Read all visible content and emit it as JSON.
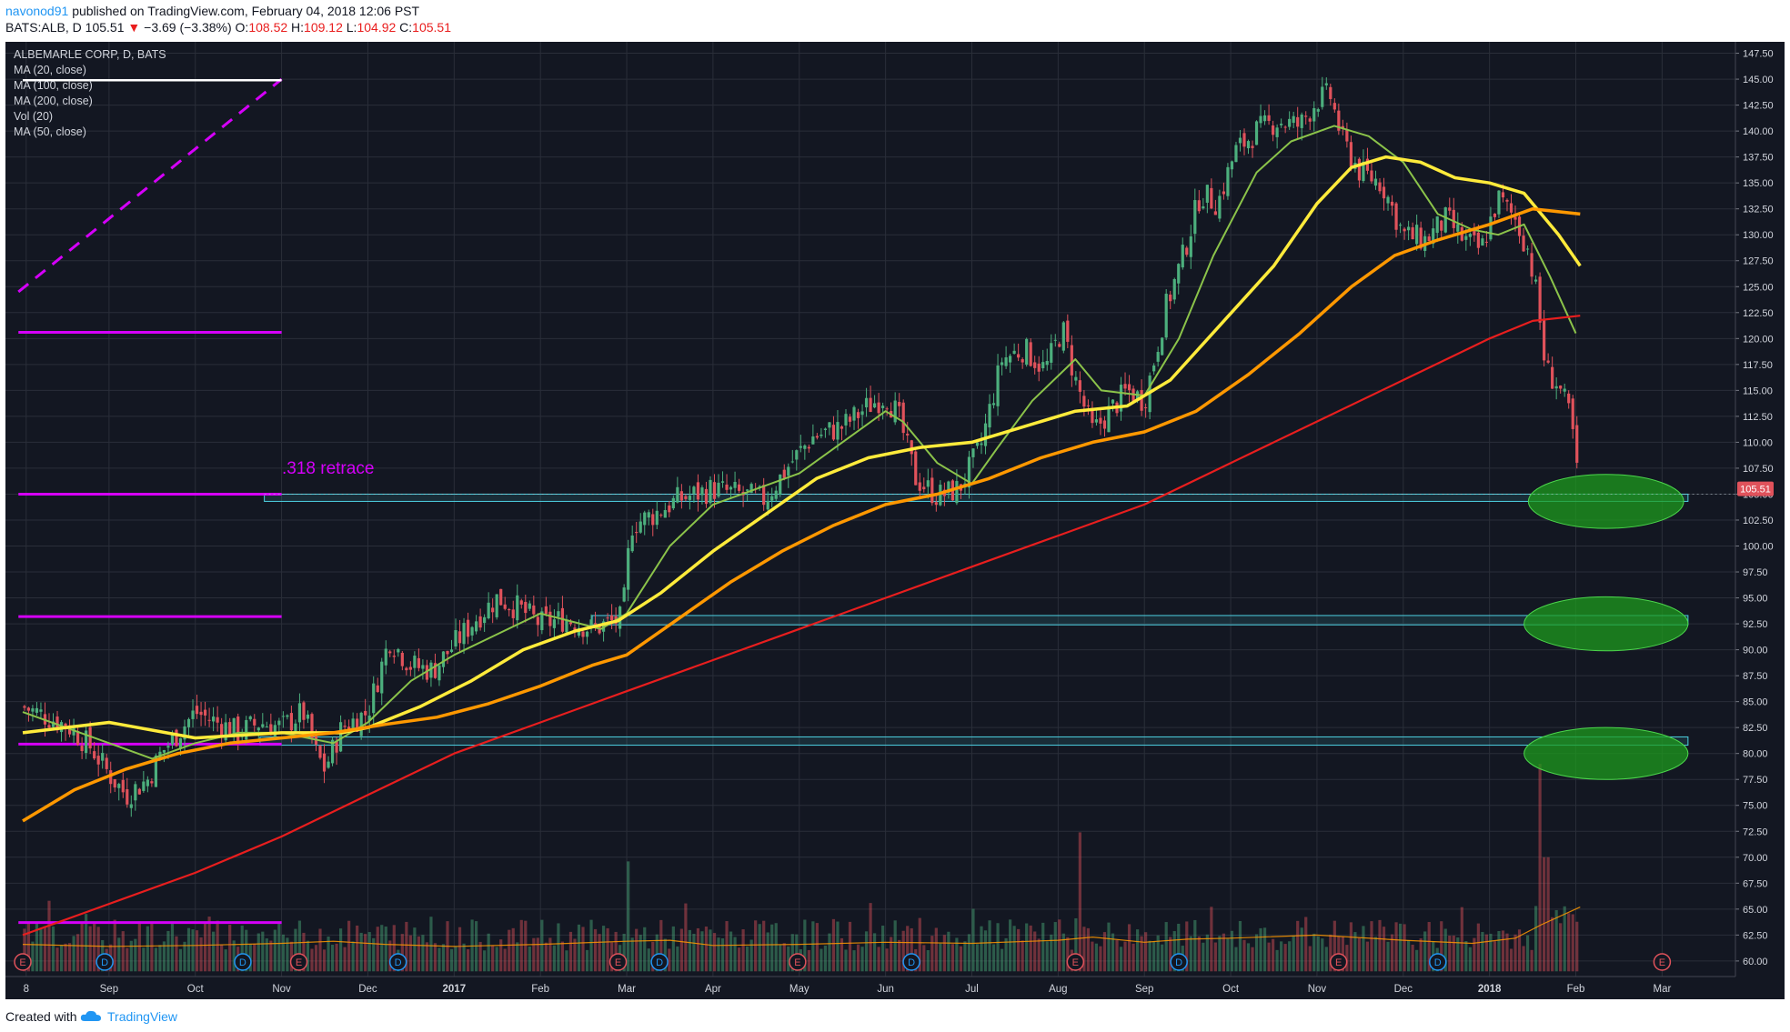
{
  "header": {
    "username": "navonod91",
    "published": "published on TradingView.com, February 04, 2018 12:06 PST",
    "symbol": "BATS:ALB, D",
    "last": "105.51",
    "change_arrow": "▼",
    "change": "−3.69 (−3.38%)",
    "open_label": "O:",
    "open": "108.52",
    "high_label": "H:",
    "high": "109.12",
    "low_label": "L:",
    "low": "104.92",
    "close_label": "C:",
    "close": "105.51"
  },
  "legend": {
    "title": "ALBEMARLE CORP, D, BATS",
    "items": [
      "MA (20, close)",
      "MA (100, close)",
      "MA (200, close)",
      "Vol (20)",
      "MA (50, close)"
    ]
  },
  "annotation": ".318 retrace",
  "price_label": "105.51",
  "footer": {
    "created_with": "Created with",
    "brand": "TradingView"
  },
  "colors": {
    "background": "#131722",
    "grid": "#2a2e39",
    "up": "#4caf7d",
    "down": "#e0525b",
    "ma20": "#8bc34a",
    "ma50": "#ffeb3b",
    "ma100": "#ff9800",
    "ma200": "#e81e1e",
    "fib": "#d500f9",
    "zone": "#4dd0e1",
    "target": "#1e9b1e"
  },
  "chart_data": {
    "type": "candlestick",
    "title": "ALBEMARLE CORP, D, BATS",
    "symbol": "BATS:ALB",
    "ylim": [
      58.5,
      148.6
    ],
    "y_ticks": [
      60.0,
      62.5,
      65.0,
      67.5,
      70.0,
      72.5,
      75.0,
      77.5,
      80.0,
      82.5,
      85.0,
      87.5,
      90.0,
      92.5,
      95.0,
      97.5,
      100.0,
      102.5,
      105.0,
      107.5,
      110.0,
      112.5,
      115.0,
      117.5,
      120.0,
      122.5,
      125.0,
      127.5,
      130.0,
      132.5,
      135.0,
      137.5,
      140.0,
      142.5,
      145.0,
      147.5
    ],
    "x_ticks": [
      {
        "label": "8",
        "t": 0.04
      },
      {
        "label": "Sep",
        "t": 1.0
      },
      {
        "label": "Oct",
        "t": 2.0
      },
      {
        "label": "Nov",
        "t": 3.0
      },
      {
        "label": "Dec",
        "t": 4.0
      },
      {
        "label": "2017",
        "t": 5.0
      },
      {
        "label": "Feb",
        "t": 6.0
      },
      {
        "label": "Mar",
        "t": 7.0
      },
      {
        "label": "Apr",
        "t": 8.0
      },
      {
        "label": "May",
        "t": 9.0
      },
      {
        "label": "Jun",
        "t": 10.0
      },
      {
        "label": "Jul",
        "t": 11.0
      },
      {
        "label": "Aug",
        "t": 12.0
      },
      {
        "label": "Sep",
        "t": 13.0
      },
      {
        "label": "Oct",
        "t": 14.0
      },
      {
        "label": "Nov",
        "t": 15.0
      },
      {
        "label": "Dec",
        "t": 16.0
      },
      {
        "label": "2018",
        "t": 17.0
      },
      {
        "label": "Feb",
        "t": 18.0
      },
      {
        "label": "Mar",
        "t": 19.0
      }
    ],
    "price_path": [
      [
        0.0,
        84.5
      ],
      [
        0.3,
        83.5
      ],
      [
        0.55,
        82.5
      ],
      [
        0.8,
        80.5
      ],
      [
        1.0,
        78.0
      ],
      [
        1.2,
        76.0
      ],
      [
        1.45,
        77.5
      ],
      [
        1.6,
        80.0
      ],
      [
        1.75,
        81.5
      ],
      [
        2.0,
        84.0
      ],
      [
        2.25,
        83.0
      ],
      [
        2.5,
        82.0
      ],
      [
        2.75,
        83.0
      ],
      [
        3.0,
        82.5
      ],
      [
        3.25,
        84.0
      ],
      [
        3.4,
        80.0
      ],
      [
        3.5,
        78.5
      ],
      [
        3.7,
        82.5
      ],
      [
        4.0,
        84.0
      ],
      [
        4.25,
        91.0
      ],
      [
        4.5,
        88.5
      ],
      [
        4.75,
        88.0
      ],
      [
        5.0,
        90.5
      ],
      [
        5.25,
        93.0
      ],
      [
        5.5,
        95.0
      ],
      [
        5.75,
        94.0
      ],
      [
        6.0,
        92.5
      ],
      [
        6.3,
        93.0
      ],
      [
        6.6,
        92.0
      ],
      [
        6.95,
        93.0
      ],
      [
        7.05,
        102.0
      ],
      [
        7.3,
        103.0
      ],
      [
        7.6,
        104.5
      ],
      [
        8.0,
        105.5
      ],
      [
        8.3,
        105.0
      ],
      [
        8.6,
        104.5
      ],
      [
        8.9,
        108.0
      ],
      [
        9.15,
        110.5
      ],
      [
        9.5,
        111.5
      ],
      [
        9.8,
        113.5
      ],
      [
        10.0,
        114.5
      ],
      [
        10.15,
        112.5
      ],
      [
        10.35,
        106.5
      ],
      [
        10.6,
        104.8
      ],
      [
        10.85,
        105.5
      ],
      [
        11.1,
        109.5
      ],
      [
        11.35,
        118.0
      ],
      [
        11.6,
        119.0
      ],
      [
        11.85,
        117.0
      ],
      [
        12.05,
        121.0
      ],
      [
        12.2,
        116.0
      ],
      [
        12.4,
        111.0
      ],
      [
        12.6,
        113.0
      ],
      [
        12.8,
        115.0
      ],
      [
        13.0,
        114.0
      ],
      [
        13.1,
        117.5
      ],
      [
        13.25,
        123.0
      ],
      [
        13.45,
        128.0
      ],
      [
        13.65,
        134.0
      ],
      [
        13.85,
        133.0
      ],
      [
        14.05,
        138.0
      ],
      [
        14.3,
        140.0
      ],
      [
        14.55,
        141.0
      ],
      [
        14.8,
        140.5
      ],
      [
        15.0,
        143.0
      ],
      [
        15.15,
        143.5
      ],
      [
        15.3,
        139.0
      ],
      [
        15.5,
        136.0
      ],
      [
        15.75,
        135.0
      ],
      [
        16.0,
        130.0
      ],
      [
        16.25,
        129.5
      ],
      [
        16.5,
        131.5
      ],
      [
        16.7,
        129.5
      ],
      [
        16.9,
        128.5
      ],
      [
        17.1,
        133.5
      ],
      [
        17.3,
        131.5
      ],
      [
        17.45,
        128.5
      ],
      [
        17.55,
        124.0
      ],
      [
        17.65,
        117.0
      ],
      [
        17.8,
        115.5
      ],
      [
        17.95,
        112.0
      ],
      [
        18.02,
        106.5
      ]
    ],
    "series": [
      {
        "name": "MA (20, close)",
        "points": [
          [
            0.0,
            84.0
          ],
          [
            1.0,
            81.0
          ],
          [
            1.5,
            79.5
          ],
          [
            2.0,
            81.0
          ],
          [
            2.5,
            82.0
          ],
          [
            3.0,
            82.0
          ],
          [
            3.6,
            81.0
          ],
          [
            4.0,
            83.0
          ],
          [
            4.5,
            87.0
          ],
          [
            5.0,
            89.5
          ],
          [
            5.5,
            91.5
          ],
          [
            6.0,
            93.5
          ],
          [
            6.7,
            92.0
          ],
          [
            7.0,
            93.5
          ],
          [
            7.5,
            100.0
          ],
          [
            8.0,
            104.0
          ],
          [
            8.5,
            105.5
          ],
          [
            9.0,
            107.0
          ],
          [
            9.5,
            110.0
          ],
          [
            10.0,
            113.0
          ],
          [
            10.2,
            112.0
          ],
          [
            10.6,
            108.0
          ],
          [
            11.0,
            106.0
          ],
          [
            11.3,
            109.5
          ],
          [
            11.7,
            114.0
          ],
          [
            12.2,
            118.0
          ],
          [
            12.5,
            115.0
          ],
          [
            13.0,
            114.5
          ],
          [
            13.4,
            120.0
          ],
          [
            13.8,
            128.0
          ],
          [
            14.3,
            136.0
          ],
          [
            14.7,
            139.0
          ],
          [
            15.2,
            140.5
          ],
          [
            15.6,
            139.5
          ],
          [
            16.0,
            137.0
          ],
          [
            16.4,
            132.0
          ],
          [
            16.8,
            130.5
          ],
          [
            17.1,
            130.0
          ],
          [
            17.4,
            131.0
          ],
          [
            17.7,
            126.0
          ],
          [
            18.0,
            120.5
          ]
        ]
      },
      {
        "name": "MA (50, close)",
        "points": [
          [
            0.0,
            82.0
          ],
          [
            1.0,
            83.0
          ],
          [
            2.0,
            81.5
          ],
          [
            3.0,
            82.0
          ],
          [
            3.7,
            82.0
          ],
          [
            4.0,
            82.5
          ],
          [
            4.6,
            84.5
          ],
          [
            5.2,
            87.0
          ],
          [
            5.8,
            90.0
          ],
          [
            6.4,
            91.8
          ],
          [
            6.9,
            92.8
          ],
          [
            7.4,
            95.5
          ],
          [
            8.0,
            99.5
          ],
          [
            8.6,
            103.0
          ],
          [
            9.2,
            106.5
          ],
          [
            9.8,
            108.5
          ],
          [
            10.4,
            109.5
          ],
          [
            11.0,
            110.0
          ],
          [
            11.6,
            111.5
          ],
          [
            12.2,
            113.0
          ],
          [
            12.8,
            113.5
          ],
          [
            13.3,
            116.0
          ],
          [
            13.9,
            121.5
          ],
          [
            14.5,
            127.0
          ],
          [
            15.0,
            133.0
          ],
          [
            15.4,
            136.5
          ],
          [
            15.8,
            137.5
          ],
          [
            16.2,
            137.0
          ],
          [
            16.6,
            135.5
          ],
          [
            17.0,
            135.0
          ],
          [
            17.4,
            134.0
          ],
          [
            17.8,
            130.0
          ],
          [
            18.05,
            127.0
          ]
        ]
      },
      {
        "name": "MA (100, close)",
        "points": [
          [
            0.0,
            73.5
          ],
          [
            0.6,
            76.5
          ],
          [
            1.2,
            78.5
          ],
          [
            1.8,
            80.0
          ],
          [
            2.4,
            81.0
          ],
          [
            3.0,
            81.5
          ],
          [
            3.6,
            82.0
          ],
          [
            4.2,
            82.8
          ],
          [
            4.8,
            83.5
          ],
          [
            5.4,
            84.8
          ],
          [
            6.0,
            86.5
          ],
          [
            6.6,
            88.5
          ],
          [
            7.0,
            89.5
          ],
          [
            7.6,
            93.0
          ],
          [
            8.2,
            96.5
          ],
          [
            8.8,
            99.5
          ],
          [
            9.4,
            102.0
          ],
          [
            10.0,
            104.0
          ],
          [
            10.6,
            105.0
          ],
          [
            11.2,
            106.5
          ],
          [
            11.8,
            108.5
          ],
          [
            12.4,
            110.0
          ],
          [
            13.0,
            111.0
          ],
          [
            13.6,
            113.0
          ],
          [
            14.2,
            116.5
          ],
          [
            14.8,
            120.5
          ],
          [
            15.4,
            125.0
          ],
          [
            15.9,
            128.0
          ],
          [
            16.4,
            129.5
          ],
          [
            17.0,
            131.0
          ],
          [
            17.5,
            132.5
          ],
          [
            18.05,
            132.0
          ]
        ]
      },
      {
        "name": "MA (200, close)",
        "points": [
          [
            0.0,
            62.5
          ],
          [
            1.0,
            65.5
          ],
          [
            2.0,
            68.5
          ],
          [
            3.0,
            72.0
          ],
          [
            4.0,
            76.0
          ],
          [
            5.0,
            80.0
          ],
          [
            6.0,
            83.0
          ],
          [
            7.0,
            86.0
          ],
          [
            8.0,
            89.0
          ],
          [
            9.0,
            92.0
          ],
          [
            10.0,
            95.0
          ],
          [
            11.0,
            98.0
          ],
          [
            12.0,
            101.0
          ],
          [
            13.0,
            104.0
          ],
          [
            14.0,
            108.0
          ],
          [
            15.0,
            112.0
          ],
          [
            16.0,
            116.0
          ],
          [
            17.0,
            120.0
          ],
          [
            17.5,
            121.7
          ],
          [
            18.05,
            122.2
          ]
        ]
      }
    ],
    "volume_ma_points": [
      [
        0.0,
        61.6
      ],
      [
        1.0,
        61.4
      ],
      [
        2.0,
        61.5
      ],
      [
        3.0,
        61.7
      ],
      [
        3.6,
        61.9
      ],
      [
        4.2,
        61.6
      ],
      [
        5.0,
        61.4
      ],
      [
        6.0,
        61.6
      ],
      [
        7.0,
        61.9
      ],
      [
        7.5,
        62.0
      ],
      [
        8.0,
        61.5
      ],
      [
        9.0,
        61.6
      ],
      [
        10.0,
        61.8
      ],
      [
        11.0,
        61.7
      ],
      [
        12.0,
        62.0
      ],
      [
        12.4,
        62.3
      ],
      [
        13.0,
        61.8
      ],
      [
        13.5,
        62.1
      ],
      [
        14.0,
        62.2
      ],
      [
        15.0,
        62.5
      ],
      [
        16.0,
        62.0
      ],
      [
        16.8,
        61.7
      ],
      [
        17.3,
        62.2
      ],
      [
        17.6,
        63.5
      ],
      [
        18.05,
        65.2
      ]
    ],
    "volume_spikes": [
      {
        "t": 7.0,
        "h": 69.6
      },
      {
        "t": 12.25,
        "h": 72.4
      },
      {
        "t": 17.6,
        "h": 79.0
      },
      {
        "t": 17.65,
        "h": 70.0
      }
    ],
    "horizontal_lines": [
      {
        "label": "fib",
        "y": 120.6,
        "t0": -0.05,
        "t1": 3.0
      },
      {
        "label": "fib",
        "y": 105.0,
        "t0": -0.05,
        "t1": 3.0
      },
      {
        "label": "fib",
        "y": 93.2,
        "t0": -0.05,
        "t1": 3.0
      },
      {
        "label": "fib",
        "y": 80.9,
        "t0": -0.05,
        "t1": 3.0
      },
      {
        "label": "fib",
        "y": 63.7,
        "t0": -0.05,
        "t1": 3.0
      }
    ],
    "fib_trend": {
      "t0": -0.05,
      "y0": 124.5,
      "t1": 3.0,
      "y1": 145.0
    },
    "white_line": {
      "y": 144.9,
      "t0": 0.0,
      "t1": 3.0
    },
    "zones": [
      {
        "y_top": 105.0,
        "y_bottom": 104.3,
        "t0": 2.8,
        "t1": 19.3
      },
      {
        "y_top": 93.3,
        "y_bottom": 92.4,
        "t0": 6.6,
        "t1": 19.3
      },
      {
        "y_top": 81.6,
        "y_bottom": 80.8,
        "t0": 2.75,
        "t1": 19.3
      }
    ],
    "target_ellipses": [
      {
        "t": 18.35,
        "y": 104.3,
        "rt": 0.9,
        "ry": 2.6
      },
      {
        "t": 18.35,
        "y": 92.5,
        "rt": 0.95,
        "ry": 2.6
      },
      {
        "t": 18.35,
        "y": 80.0,
        "rt": 0.95,
        "ry": 2.5
      }
    ],
    "event_markers": [
      {
        "t": 0.0,
        "label": "E",
        "kind": "E"
      },
      {
        "t": 0.95,
        "label": "D",
        "kind": "D"
      },
      {
        "t": 2.55,
        "label": "D",
        "kind": "D"
      },
      {
        "t": 3.2,
        "label": "E",
        "kind": "E"
      },
      {
        "t": 4.35,
        "label": "D",
        "kind": "D"
      },
      {
        "t": 6.9,
        "label": "E",
        "kind": "E"
      },
      {
        "t": 7.38,
        "label": "D",
        "kind": "D"
      },
      {
        "t": 8.98,
        "label": "E",
        "kind": "E"
      },
      {
        "t": 10.3,
        "label": "D",
        "kind": "D"
      },
      {
        "t": 12.2,
        "label": "E",
        "kind": "E"
      },
      {
        "t": 13.4,
        "label": "D",
        "kind": "D"
      },
      {
        "t": 15.25,
        "label": "E",
        "kind": "E"
      },
      {
        "t": 16.4,
        "label": "D",
        "kind": "D"
      },
      {
        "t": 19.0,
        "label": "E",
        "kind": "E"
      }
    ]
  }
}
